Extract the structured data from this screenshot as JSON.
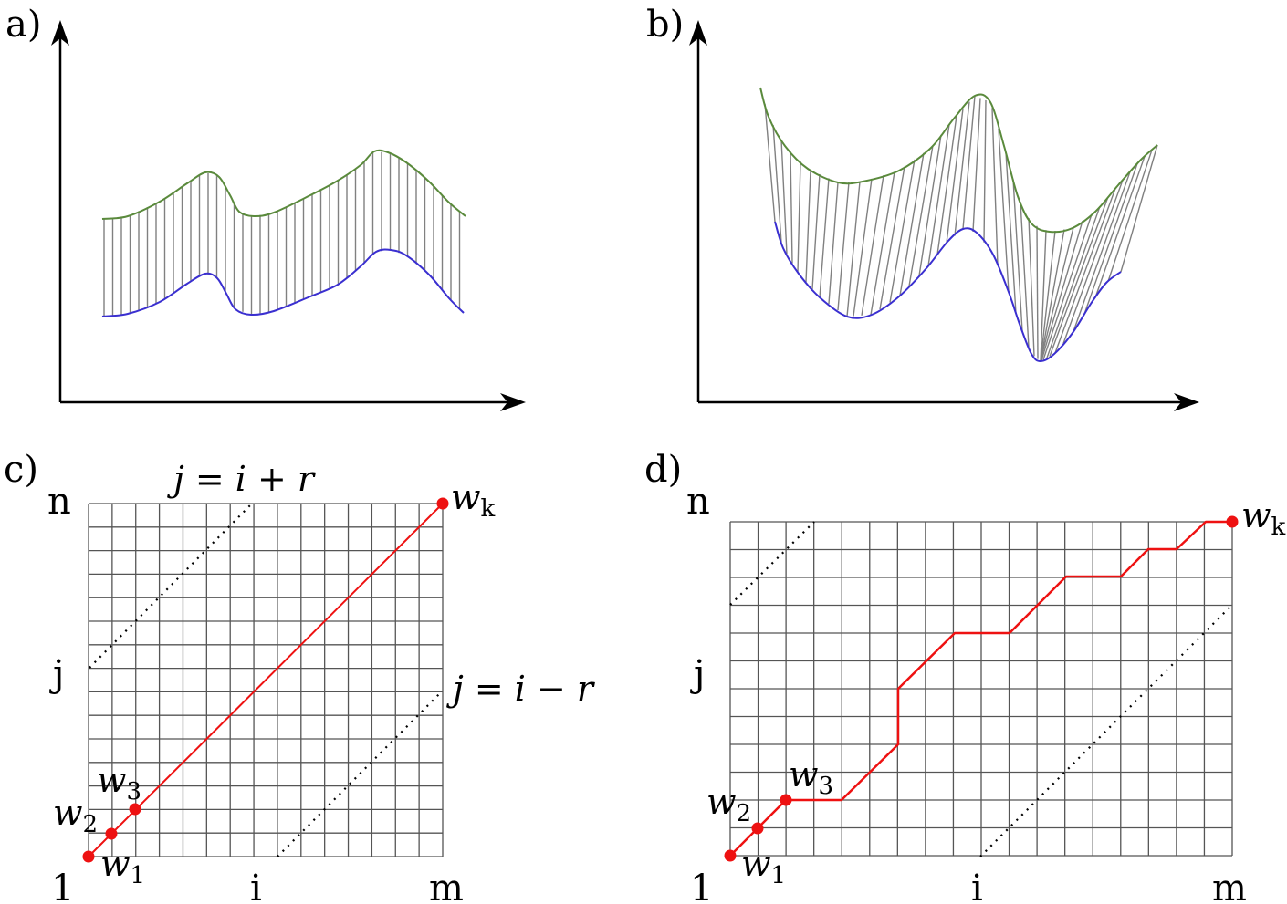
{
  "panels": {
    "a": {
      "label": "a)"
    },
    "b": {
      "label": "b)"
    },
    "c": {
      "label": "c)",
      "y_top": "n",
      "y_mid": "j",
      "x_start": "1",
      "x_mid": "i",
      "x_end": "m",
      "band_upper": "j = i + r",
      "band_lower": "j = i − r",
      "points": [
        {
          "base": "w",
          "sub": "1"
        },
        {
          "base": "w",
          "sub": "2"
        },
        {
          "base": "w",
          "sub": "3"
        },
        {
          "base": "w",
          "sub": "k"
        }
      ]
    },
    "d": {
      "label": "d)",
      "y_top": "n",
      "y_mid": "j",
      "x_start": "1",
      "x_mid": "i",
      "x_end": "m",
      "points": [
        {
          "base": "w",
          "sub": "1"
        },
        {
          "base": "w",
          "sub": "2"
        },
        {
          "base": "w",
          "sub": "3"
        },
        {
          "base": "w",
          "sub": "k"
        }
      ]
    }
  },
  "colors": {
    "upper_curve": "#5a8a3c",
    "lower_curve": "#3a2fd0",
    "hatch": "#808080",
    "path": "#ee1111",
    "grid": "#555555",
    "band": "#000000"
  }
}
